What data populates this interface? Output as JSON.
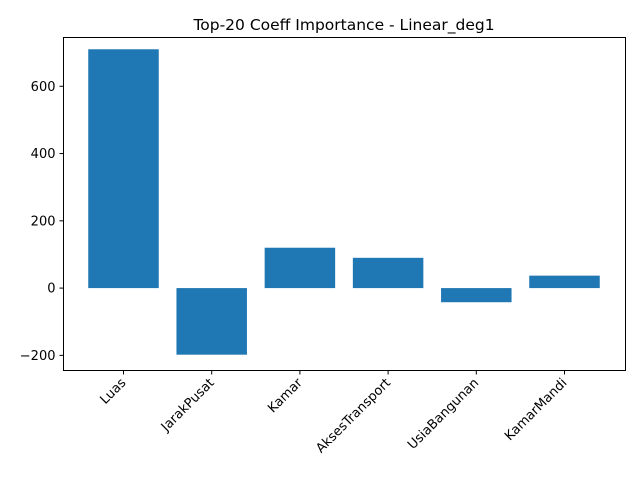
{
  "chart_data": {
    "type": "bar",
    "title": "Top-20 Coeff Importance - Linear_deg1",
    "xlabel": "",
    "ylabel": "",
    "categories": [
      "Luas",
      "JarakPusat",
      "Kamar",
      "AksesTransport",
      "UsiaBangunan",
      "KamarMandi"
    ],
    "values": [
      710,
      -198,
      120,
      90,
      -42,
      37
    ],
    "ylim": [
      -245,
      745
    ],
    "yticks": [
      -200,
      0,
      200,
      400,
      600
    ],
    "ytick_labels": [
      "−200",
      "0",
      "200",
      "400",
      "600"
    ],
    "bar_color": "#1f77b4",
    "grid": false
  }
}
